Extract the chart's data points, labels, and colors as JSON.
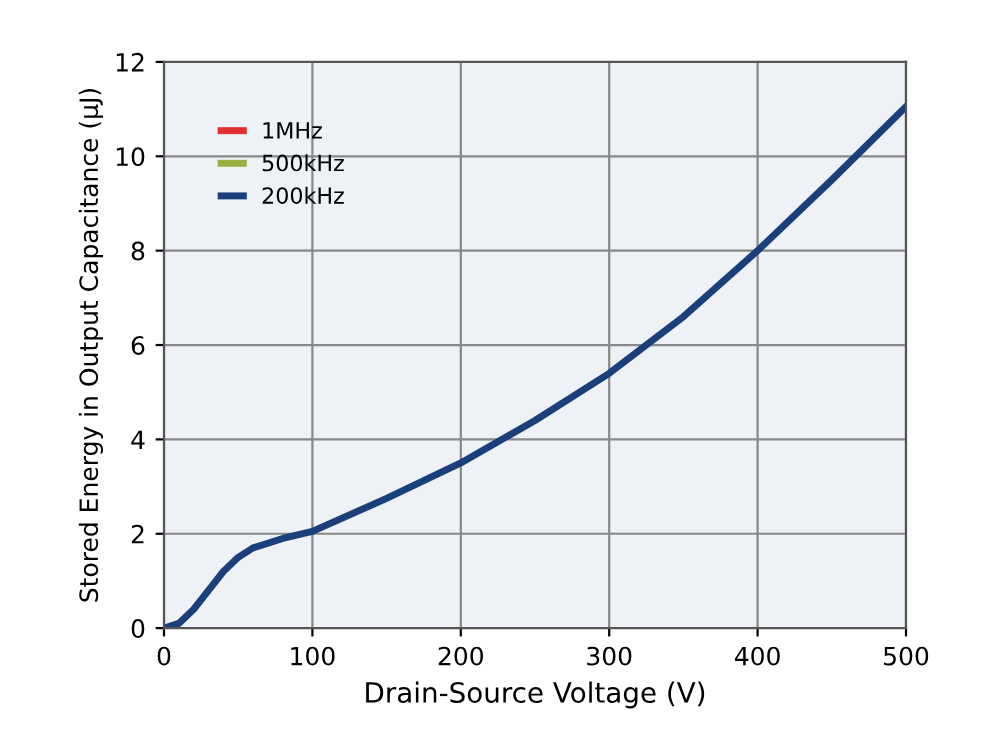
{
  "chart_data": {
    "type": "line",
    "xlabel": "Drain-Source Voltage (V)",
    "ylabel": "Stored Energy in Output Capacitance (μJ)",
    "x": [
      0,
      10,
      20,
      30,
      40,
      50,
      60,
      80,
      100,
      150,
      200,
      250,
      300,
      350,
      400,
      450,
      500
    ],
    "series": [
      {
        "name": "1MHz",
        "color": "#e03030",
        "values": [
          null,
          null,
          null,
          null,
          null,
          null,
          null,
          null,
          null,
          null,
          null,
          null,
          null,
          null,
          null,
          null,
          null
        ]
      },
      {
        "name": "500kHz",
        "color": "#99b040",
        "values": [
          null,
          null,
          null,
          null,
          null,
          null,
          null,
          null,
          null,
          null,
          null,
          null,
          null,
          null,
          null,
          null,
          null
        ]
      },
      {
        "name": "200kHz",
        "color": "#1a3f7a",
        "values": [
          0,
          0.1,
          0.4,
          0.8,
          1.2,
          1.5,
          1.7,
          1.9,
          2.05,
          2.75,
          3.5,
          4.4,
          5.4,
          6.6,
          8.0,
          9.5,
          11.05
        ]
      }
    ],
    "xlim": [
      0,
      500
    ],
    "ylim": [
      0,
      12
    ],
    "xticks": [
      0,
      100,
      200,
      300,
      400,
      500
    ],
    "yticks": [
      0,
      2,
      4,
      6,
      8,
      10,
      12
    ],
    "grid": true,
    "legend": "top left",
    "marker": "none",
    "line_style": "solid"
  }
}
